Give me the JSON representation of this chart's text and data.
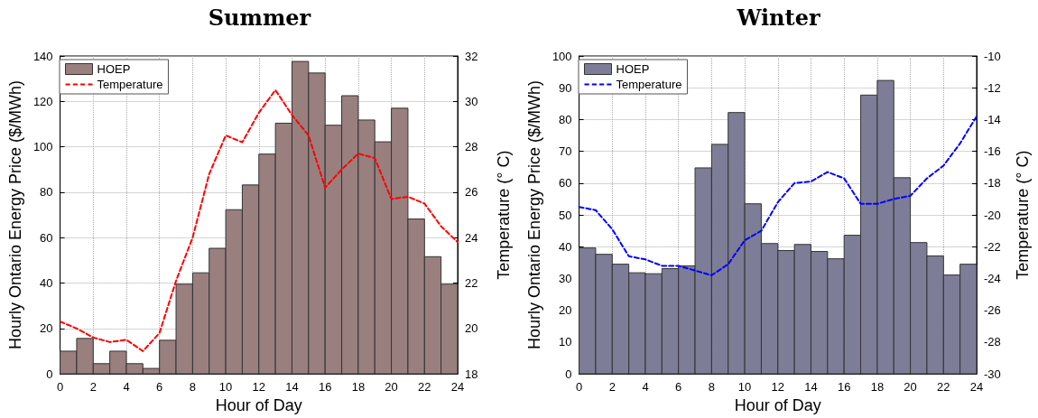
{
  "chart_data": [
    {
      "type": "histogram",
      "title": "Summer",
      "xlabel": "Hour of Day",
      "ylabel": "Hourly Ontario Energy Price ($/MWh)",
      "y2label": "Temperature (° C)",
      "bins": [
        0,
        1,
        2,
        3,
        4,
        5,
        6,
        7,
        8,
        9,
        10,
        11,
        12,
        13,
        14,
        15,
        16,
        17,
        18,
        19,
        20,
        21,
        22,
        23,
        24
      ],
      "series": [
        {
          "name": "HOEP",
          "color": "#9a7f7f",
          "values": [
            10,
            15.6,
            4.5,
            10,
            4.5,
            2.4,
            14.8,
            39.5,
            44.5,
            55.3,
            72.3,
            83.2,
            96.8,
            110.4,
            137.6,
            132.5,
            109.5,
            122.5,
            111.8,
            102.2,
            117,
            68.2,
            51.6,
            39.5
          ]
        },
        {
          "name": "Temperature",
          "type": "line",
          "axis": "y2",
          "color": "#ff0000",
          "line_style": "dashed",
          "x": [
            0,
            1,
            2,
            3,
            4,
            5,
            6,
            7,
            8,
            9,
            10,
            11,
            12,
            13,
            14,
            15,
            16,
            17,
            18,
            19,
            20,
            21,
            22,
            23,
            24
          ],
          "values": [
            20.3,
            20.0,
            19.6,
            19.4,
            19.5,
            19.0,
            19.8,
            22.1,
            24.0,
            26.8,
            28.5,
            28.2,
            29.5,
            30.5,
            29.4,
            28.5,
            26.2,
            27.0,
            27.7,
            27.5,
            25.7,
            25.8,
            25.5,
            24.5,
            23.8
          ]
        }
      ],
      "xlim": [
        0,
        24
      ],
      "xticks": [
        0,
        2,
        4,
        6,
        8,
        10,
        12,
        14,
        16,
        18,
        20,
        22,
        24
      ],
      "ylim": [
        0,
        140
      ],
      "yticks": [
        0,
        20,
        40,
        60,
        80,
        100,
        120,
        140
      ],
      "y2lim": [
        18,
        32
      ],
      "y2ticks": [
        18,
        20,
        22,
        24,
        26,
        28,
        30,
        32
      ],
      "grid": true,
      "legend": "top left",
      "marker": "none"
    },
    {
      "type": "histogram",
      "title": "Winter",
      "xlabel": "Hour of Day",
      "ylabel": "Hourly Ontario Energy Price ($/MWh)",
      "y2label": "Temperature (° C)",
      "bins": [
        0,
        1,
        2,
        3,
        4,
        5,
        6,
        7,
        8,
        9,
        10,
        11,
        12,
        13,
        14,
        15,
        16,
        17,
        18,
        19,
        20,
        21,
        22,
        23,
        24
      ],
      "series": [
        {
          "name": "HOEP",
          "color": "#7d7d98",
          "values": [
            39.6,
            37.6,
            34.5,
            31.8,
            31.5,
            33.1,
            34.0,
            64.8,
            72.2,
            82.2,
            53.5,
            41.0,
            38.8,
            40.7,
            38.5,
            36.2,
            43.6,
            87.7,
            92.3,
            61.7,
            41.3,
            37.1,
            31.1,
            34.5
          ]
        },
        {
          "name": "Temperature",
          "type": "line",
          "axis": "y2",
          "color": "#0000ff",
          "line_style": "dashed",
          "x": [
            0,
            1,
            2,
            3,
            4,
            5,
            6,
            7,
            8,
            9,
            10,
            11,
            12,
            13,
            14,
            15,
            16,
            17,
            18,
            19,
            20,
            21,
            22,
            23,
            24
          ],
          "values": [
            -19.5,
            -19.7,
            -20.9,
            -22.6,
            -22.8,
            -23.2,
            -23.2,
            -23.5,
            -23.8,
            -23.1,
            -21.6,
            -21.0,
            -19.2,
            -18.0,
            -17.9,
            -17.3,
            -17.7,
            -19.3,
            -19.3,
            -19.0,
            -18.8,
            -17.7,
            -16.9,
            -15.5,
            -13.8
          ]
        }
      ],
      "xlim": [
        0,
        24
      ],
      "xticks": [
        0,
        2,
        4,
        6,
        8,
        10,
        12,
        14,
        16,
        18,
        20,
        22,
        24
      ],
      "ylim": [
        0,
        100
      ],
      "yticks": [
        0,
        10,
        20,
        30,
        40,
        50,
        60,
        70,
        80,
        90,
        100
      ],
      "y2lim": [
        -30,
        -10
      ],
      "y2ticks": [
        -30,
        -28,
        -26,
        -24,
        -22,
        -20,
        -18,
        -16,
        -14,
        -12,
        -10
      ],
      "grid": true,
      "legend": "top left",
      "marker": "none"
    }
  ]
}
